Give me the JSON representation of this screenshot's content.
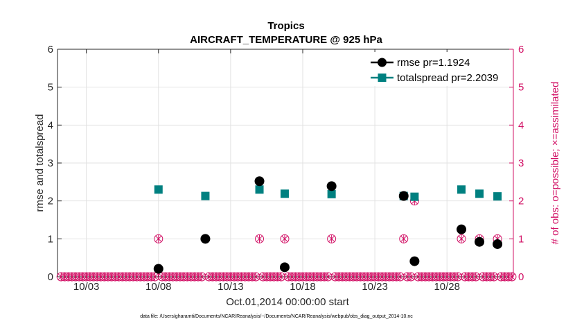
{
  "chart_data": {
    "type": "scatter",
    "title": "Tropics",
    "subtitle": "AIRCRAFT_TEMPERATURE @ 925 hPa",
    "xlabel": "Oct.01,2014 00:00:00 start",
    "ylabel": "rmse and totalspread",
    "y2label": "# of obs: o=possible; ×=assimilated",
    "footnote": "data file: /Users/gharamti/Documents/NCAR/Reanalysis/~/Documents/NCAR/Reanalysis/webpub/obs_diag_output_2014-10.nc",
    "xlim": [
      1.0,
      32.6
    ],
    "ylim": [
      0,
      6
    ],
    "y2lim": [
      0,
      6
    ],
    "x_ticks": [
      {
        "x": 3,
        "label": "10/03"
      },
      {
        "x": 8,
        "label": "10/08"
      },
      {
        "x": 13,
        "label": "10/13"
      },
      {
        "x": 18,
        "label": "10/18"
      },
      {
        "x": 23,
        "label": "10/23"
      },
      {
        "x": 28,
        "label": "10/28"
      }
    ],
    "y_ticks": [
      0,
      1,
      2,
      3,
      4,
      5,
      6
    ],
    "y2_ticks": [
      0,
      1,
      2,
      3,
      4,
      5,
      6
    ],
    "grid": true,
    "legend_position": "top-right",
    "series": [
      {
        "name": "rmse pr=1.1924",
        "axis": "left",
        "marker": "circle",
        "color": "#000000",
        "points": [
          {
            "x": 8.0,
            "y": 0.21
          },
          {
            "x": 11.25,
            "y": 1.0
          },
          {
            "x": 15.0,
            "y": 2.52
          },
          {
            "x": 16.75,
            "y": 0.25
          },
          {
            "x": 20.0,
            "y": 2.39
          },
          {
            "x": 25.0,
            "y": 2.13
          },
          {
            "x": 25.75,
            "y": 0.41
          },
          {
            "x": 29.0,
            "y": 1.25
          },
          {
            "x": 30.25,
            "y": 0.92
          },
          {
            "x": 31.5,
            "y": 0.86
          }
        ]
      },
      {
        "name": "totalspread pr=2.2039",
        "axis": "left",
        "marker": "square",
        "color": "#008080",
        "points": [
          {
            "x": 8.0,
            "y": 2.3
          },
          {
            "x": 11.25,
            "y": 2.13
          },
          {
            "x": 15.0,
            "y": 2.3
          },
          {
            "x": 16.75,
            "y": 2.19
          },
          {
            "x": 20.0,
            "y": 2.18
          },
          {
            "x": 25.0,
            "y": 2.13
          },
          {
            "x": 25.75,
            "y": 2.11
          },
          {
            "x": 29.0,
            "y": 2.3
          },
          {
            "x": 30.25,
            "y": 2.19
          },
          {
            "x": 31.5,
            "y": 2.12
          }
        ]
      },
      {
        "name": "obs possible",
        "axis": "right",
        "marker": "circle-open",
        "color": "#d21065",
        "x_start": 1.25,
        "x_step": 0.25,
        "count": 126,
        "nonzero": [
          {
            "x": 8.0,
            "y": 1
          },
          {
            "x": 11.25,
            "y": 1
          },
          {
            "x": 15.0,
            "y": 1
          },
          {
            "x": 16.75,
            "y": 1
          },
          {
            "x": 20.0,
            "y": 1
          },
          {
            "x": 25.0,
            "y": 1
          },
          {
            "x": 25.75,
            "y": 2
          },
          {
            "x": 29.0,
            "y": 1
          },
          {
            "x": 30.25,
            "y": 1
          },
          {
            "x": 31.5,
            "y": 1
          }
        ]
      },
      {
        "name": "obs assimilated",
        "axis": "right",
        "marker": "cross",
        "color": "#d21065",
        "same_as": "obs possible"
      }
    ]
  },
  "colors": {
    "axis": "#262626",
    "grid": "#e2e2e2",
    "right_axis": "#d21065"
  }
}
